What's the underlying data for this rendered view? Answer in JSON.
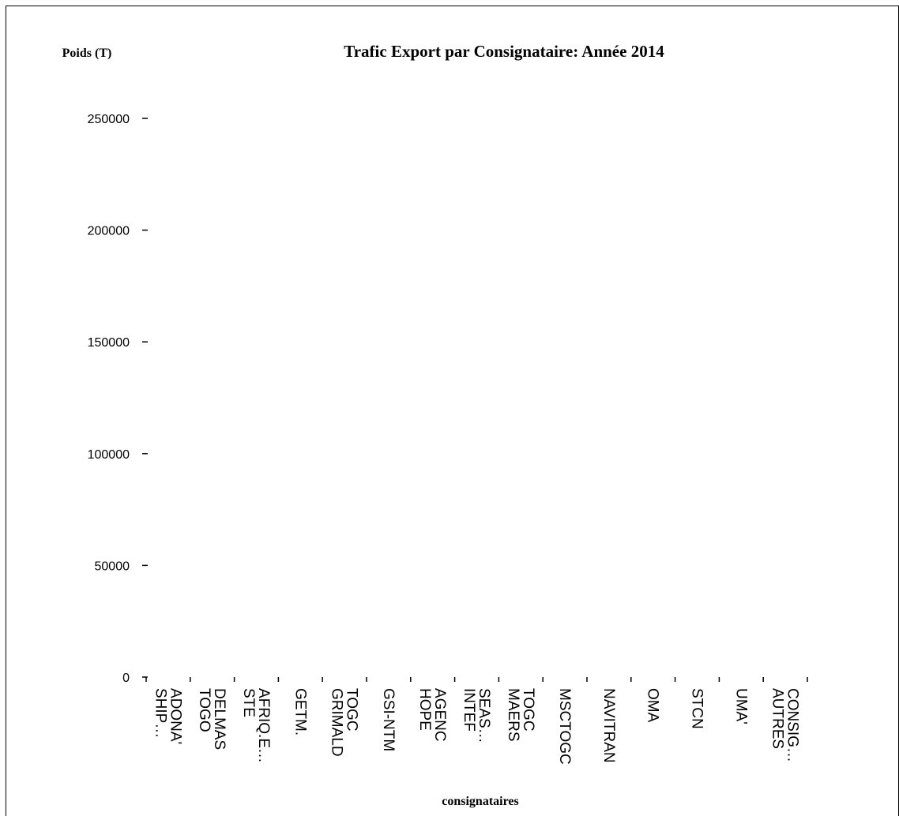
{
  "chart_data": {
    "type": "bar",
    "title": "Trafic Export par Consignataire: Année 2014",
    "ylabel": "Poids (T)",
    "xlabel": "consignataires",
    "ylim": [
      0,
      250000
    ],
    "yticks": [
      0,
      50000,
      100000,
      150000,
      200000,
      250000
    ],
    "ytick_labels": [
      "0",
      "50000",
      "100000",
      "150000",
      "200000",
      "250000"
    ],
    "grid": false,
    "categories": [
      [
        "SHIP…",
        "ADONA'"
      ],
      [
        "TOGO",
        "DELMAS"
      ],
      [
        "STE",
        "AFRIQ.E…"
      ],
      [
        "GETM."
      ],
      [
        "GRIMALD",
        "TOGC"
      ],
      [
        "GSI-NTM"
      ],
      [
        "HOPE",
        "AGENC"
      ],
      [
        "INTEF",
        "SEAS…"
      ],
      [
        "MAERS",
        "TOGC"
      ],
      [
        "MSCTOGC"
      ],
      [
        "NAVITRAN"
      ],
      [
        "OMA"
      ],
      [
        "STCN"
      ],
      [
        "UMA'"
      ],
      [
        "AUTRES",
        "CONSIG…"
      ]
    ],
    "values": [
      0,
      0,
      0,
      0,
      0,
      0,
      0,
      0,
      0,
      0,
      0,
      0,
      0,
      0,
      0
    ]
  },
  "colors": {
    "axis": "#000000",
    "bar": "#000000",
    "background": "#ffffff"
  }
}
